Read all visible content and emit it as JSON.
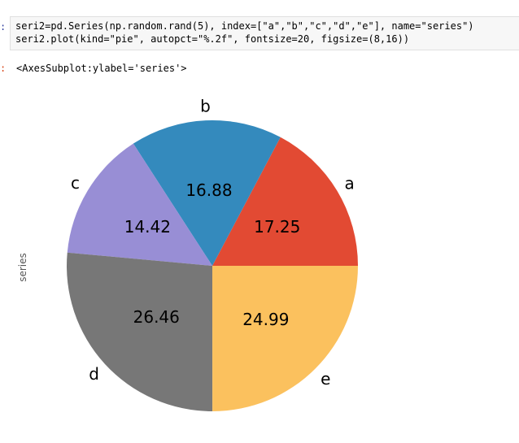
{
  "input_prompt": ":",
  "output_prompt": ":",
  "code_lines": [
    "seri2=pd.Series(np.random.rand(5), index=[\"a\",\"b\",\"c\",\"d\",\"e\"], name=\"series\")",
    "seri2.plot(kind=\"pie\", autopct=\"%.2f\", fontsize=20, figsize=(8,16))"
  ],
  "output_repr": "<AxesSubplot:ylabel='series'>",
  "chart_data": {
    "type": "pie",
    "ylabel": "series",
    "startangle_deg": 0,
    "direction": "counterclockwise",
    "categories": [
      "a",
      "b",
      "c",
      "d",
      "e"
    ],
    "values": [
      17.25,
      16.88,
      14.42,
      26.46,
      24.99
    ],
    "value_labels": [
      "17.25",
      "16.88",
      "14.42",
      "26.46",
      "24.99"
    ],
    "colors": [
      "#E24A33",
      "#348ABD",
      "#988ED5",
      "#777777",
      "#FBC15E"
    ],
    "label_color": "#000000",
    "ylabel_color": "#555555"
  }
}
